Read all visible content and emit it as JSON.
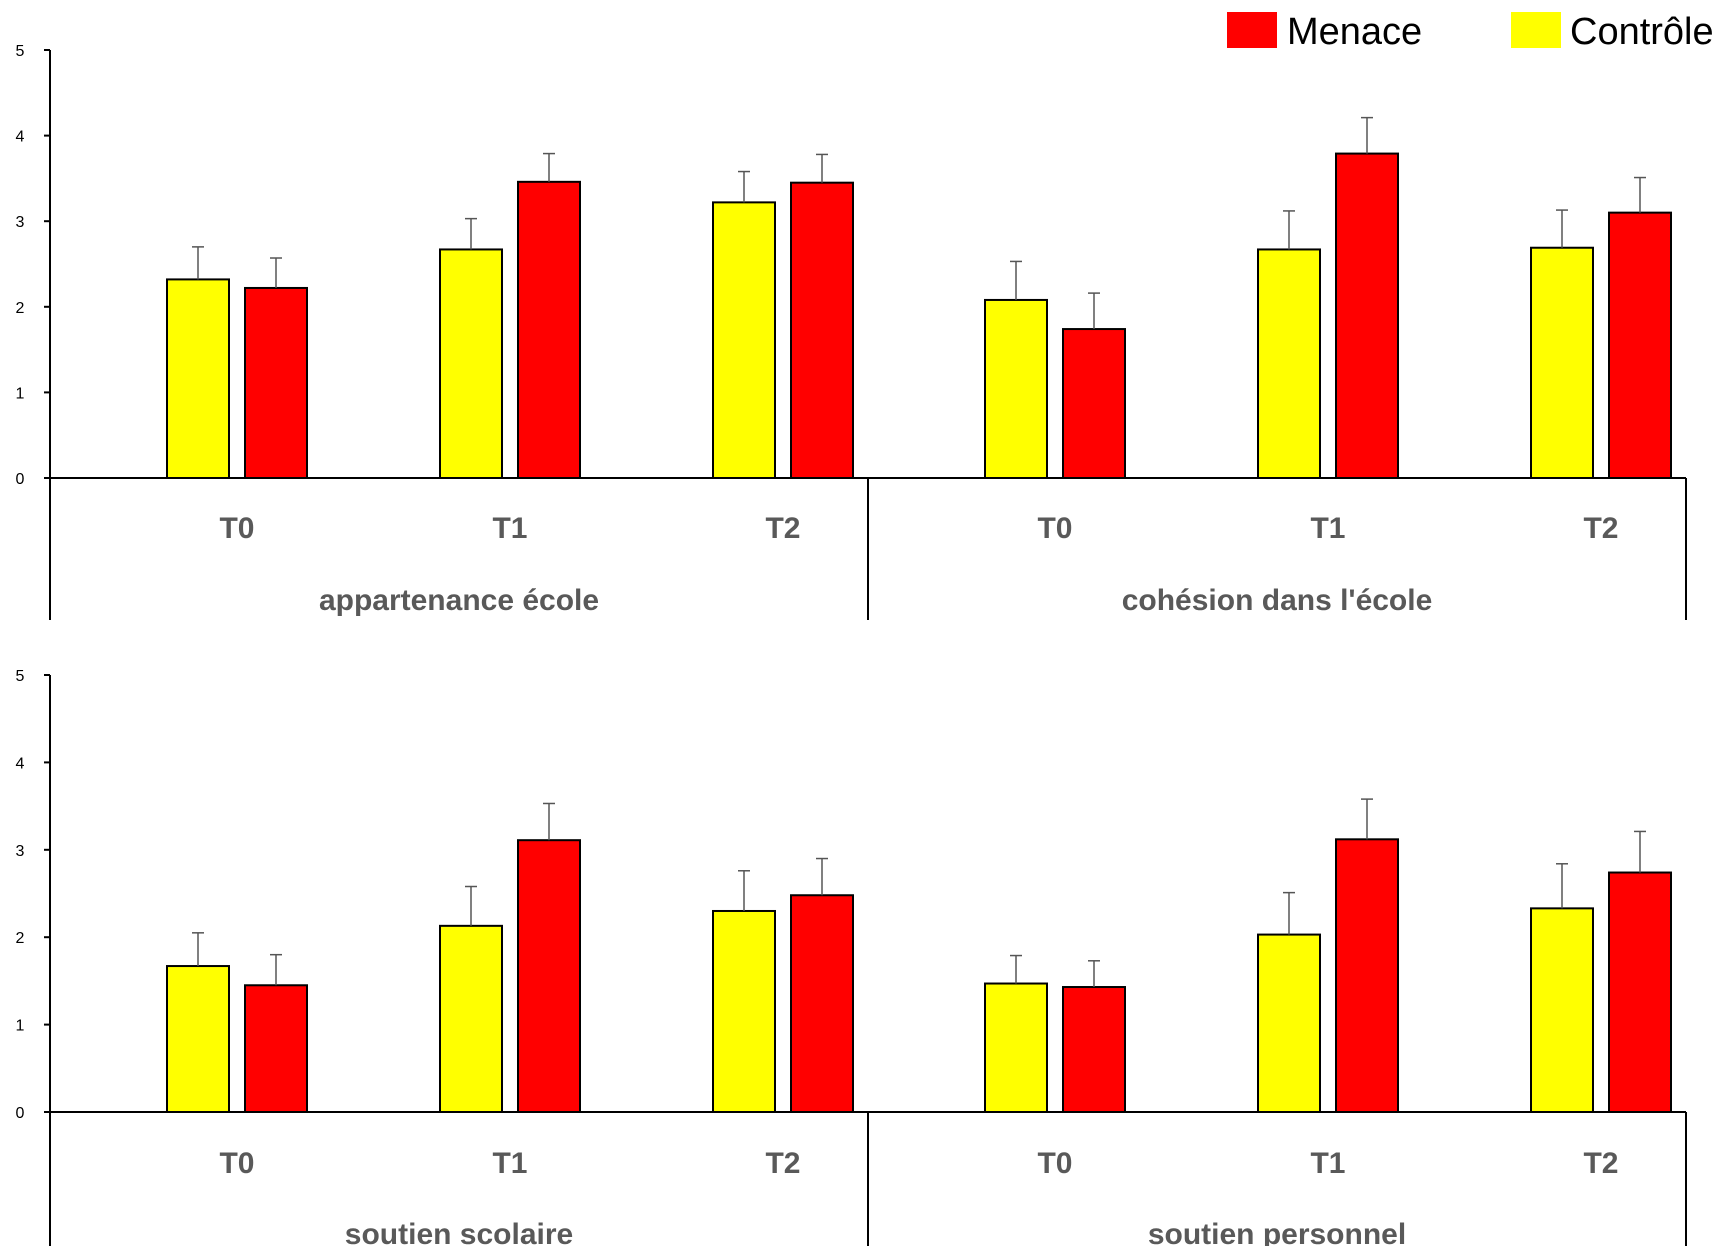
{
  "colors": {
    "Menace": "#ff0000",
    "Contrôle": "#ffff00",
    "axis": "#000000",
    "error": "#555555"
  },
  "legend": [
    {
      "name": "Menace",
      "color": "#ff0000"
    },
    {
      "name": "Contrôle",
      "color": "#ffff00"
    }
  ],
  "chart_data": [
    {
      "type": "bar",
      "ylim": [
        0,
        5
      ],
      "yticks": [
        "0",
        "1",
        "2",
        "3",
        "4",
        "5"
      ],
      "grid": false,
      "legend_position": "top-right",
      "series_order": [
        "Contrôle",
        "Menace"
      ],
      "groups": [
        {
          "label": "appartenance école",
          "categories": [
            "T0",
            "T1",
            "T2"
          ],
          "series": [
            {
              "name": "Contrôle",
              "values": [
                2.32,
                2.67,
                3.22
              ],
              "errors": [
                0.38,
                0.36,
                0.36
              ]
            },
            {
              "name": "Menace",
              "values": [
                2.22,
                3.46,
                3.45
              ],
              "errors": [
                0.35,
                0.33,
                0.33
              ]
            }
          ]
        },
        {
          "label": "cohésion dans l'école",
          "categories": [
            "T0",
            "T1",
            "T2"
          ],
          "series": [
            {
              "name": "Contrôle",
              "values": [
                2.08,
                2.67,
                2.69
              ],
              "errors": [
                0.45,
                0.45,
                0.44
              ]
            },
            {
              "name": "Menace",
              "values": [
                1.74,
                3.79,
                3.1
              ],
              "errors": [
                0.42,
                0.42,
                0.41
              ]
            }
          ]
        }
      ]
    },
    {
      "type": "bar",
      "ylim": [
        0,
        5
      ],
      "yticks": [
        "0",
        "1",
        "2",
        "3",
        "4",
        "5"
      ],
      "grid": false,
      "legend_position": "top-right",
      "series_order": [
        "Contrôle",
        "Menace"
      ],
      "groups": [
        {
          "label": "soutien scolaire",
          "categories": [
            "T0",
            "T1",
            "T2"
          ],
          "series": [
            {
              "name": "Contrôle",
              "values": [
                1.67,
                2.13,
                2.3
              ],
              "errors": [
                0.38,
                0.45,
                0.46
              ]
            },
            {
              "name": "Menace",
              "values": [
                1.45,
                3.11,
                2.48
              ],
              "errors": [
                0.35,
                0.42,
                0.42
              ]
            }
          ]
        },
        {
          "label": "soutien personnel",
          "categories": [
            "T0",
            "T1",
            "T2"
          ],
          "series": [
            {
              "name": "Contrôle",
              "values": [
                1.47,
                2.03,
                2.33
              ],
              "errors": [
                0.32,
                0.48,
                0.51
              ]
            },
            {
              "name": "Menace",
              "values": [
                1.43,
                3.12,
                2.74
              ],
              "errors": [
                0.3,
                0.46,
                0.47
              ]
            }
          ]
        }
      ]
    }
  ]
}
